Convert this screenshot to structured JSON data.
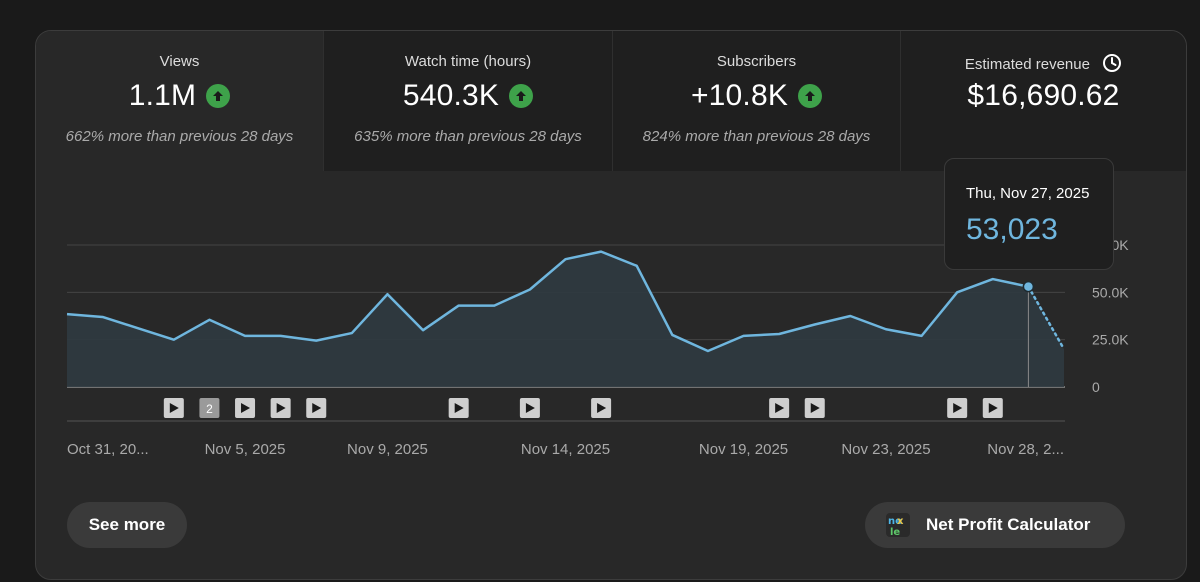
{
  "tabs": [
    {
      "label": "Views",
      "value": "1.1M",
      "trend_icon": "arrow-up-icon",
      "comparison": "662% more than previous 28 days",
      "selected": true
    },
    {
      "label": "Watch time (hours)",
      "value": "540.3K",
      "trend_icon": "arrow-up-icon",
      "comparison": "635% more than previous 28 days",
      "selected": false
    },
    {
      "label": "Subscribers",
      "value": "+10.8K",
      "trend_icon": "arrow-up-icon",
      "comparison": "824% more than previous 28 days",
      "selected": false
    },
    {
      "label": "Estimated revenue",
      "value": "$16,690.62",
      "info_icon": "clock-icon",
      "selected": false
    }
  ],
  "tooltip": {
    "date": "Thu, Nov 27, 2025",
    "value": "53,023"
  },
  "chart_data": {
    "type": "area",
    "x": [
      "Oct 31",
      "Nov 1",
      "Nov 2",
      "Nov 3",
      "Nov 4",
      "Nov 5",
      "Nov 6",
      "Nov 7",
      "Nov 8",
      "Nov 9",
      "Nov 10",
      "Nov 11",
      "Nov 12",
      "Nov 13",
      "Nov 14",
      "Nov 15",
      "Nov 16",
      "Nov 17",
      "Nov 18",
      "Nov 19",
      "Nov 20",
      "Nov 21",
      "Nov 22",
      "Nov 23",
      "Nov 24",
      "Nov 25",
      "Nov 26",
      "Nov 27",
      "Nov 28"
    ],
    "values": [
      38500,
      37000,
      31000,
      25000,
      35500,
      27000,
      27000,
      24500,
      28500,
      49000,
      30000,
      43000,
      43000,
      51500,
      67500,
      71500,
      64000,
      27500,
      19000,
      27000,
      28000,
      33000,
      37500,
      30500,
      27000,
      50000,
      57000,
      53023,
      20000
    ],
    "provisional_last_point": true,
    "ylim": [
      0,
      75000
    ],
    "y_ticks": [
      {
        "value": 0,
        "label": "0"
      },
      {
        "value": 25000,
        "label": "25.0K"
      },
      {
        "value": 50000,
        "label": "50.0K"
      },
      {
        "value": 75000,
        "label": "75.0K"
      }
    ],
    "x_tick_labels": [
      {
        "index": 0,
        "label": "Oct 31, 20..."
      },
      {
        "index": 5,
        "label": "Nov 5, 2025"
      },
      {
        "index": 9,
        "label": "Nov 9, 2025"
      },
      {
        "index": 14,
        "label": "Nov 14, 2025"
      },
      {
        "index": 19,
        "label": "Nov 19, 2025"
      },
      {
        "index": 23,
        "label": "Nov 23, 2025"
      },
      {
        "index": 28,
        "label": "Nov 28, 2..."
      }
    ],
    "highlight_index": 27,
    "video_markers": [
      {
        "index": 3,
        "kind": "play"
      },
      {
        "index": 4,
        "kind": "count",
        "label": "2"
      },
      {
        "index": 5,
        "kind": "play"
      },
      {
        "index": 6,
        "kind": "play"
      },
      {
        "index": 7,
        "kind": "play"
      },
      {
        "index": 11,
        "kind": "play"
      },
      {
        "index": 13,
        "kind": "play"
      },
      {
        "index": 15,
        "kind": "play"
      },
      {
        "index": 20,
        "kind": "play"
      },
      {
        "index": 21,
        "kind": "play"
      },
      {
        "index": 25,
        "kind": "play"
      },
      {
        "index": 26,
        "kind": "play"
      }
    ],
    "colors": {
      "line": "#6fb6de",
      "fill": "#2f3a40",
      "grid": "#444444",
      "axis": "#aaaaaa"
    }
  },
  "buttons": {
    "see_more": "See more",
    "calculator": "Net Profit Calculator",
    "calculator_icon": "net-profit-calculator-logo-icon"
  }
}
